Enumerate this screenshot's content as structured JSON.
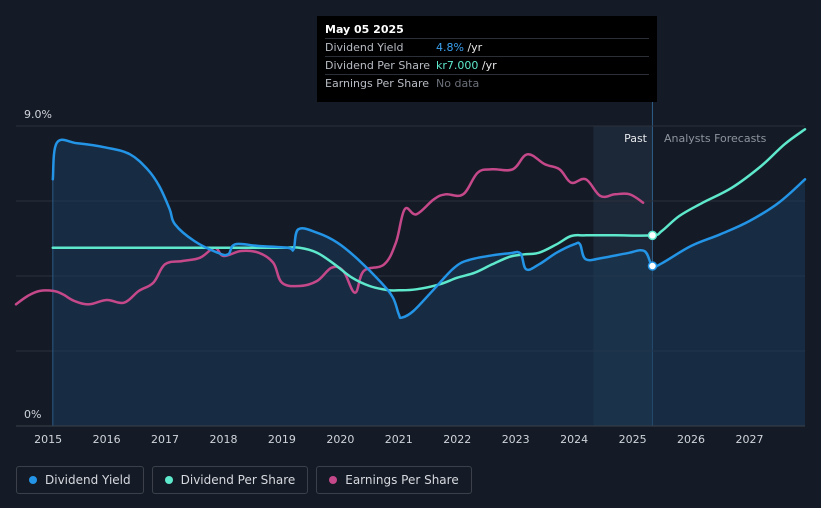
{
  "tooltip": {
    "date": "May 05 2025",
    "rows": [
      {
        "label": "Dividend Yield",
        "value": "4.8%",
        "unit": " /yr"
      },
      {
        "label": "Dividend Per Share",
        "value": "kr7.000",
        "unit": " /yr"
      },
      {
        "label": "Earnings Per Share",
        "value": "No data",
        "unit": ""
      }
    ]
  },
  "legend": {
    "items": [
      {
        "label": "Dividend Yield",
        "color": "#2394e6"
      },
      {
        "label": "Dividend Per Share",
        "color": "#5ee8cc"
      },
      {
        "label": "Earnings Per Share",
        "color": "#c5488a"
      }
    ]
  },
  "chart_data": {
    "type": "line",
    "y_tick_labels": [
      "9.0%",
      "0%"
    ],
    "ylim": [
      0,
      9.0
    ],
    "xlim": [
      2014.45,
      2027.95
    ],
    "x_ticks": [
      2015,
      2016,
      2017,
      2018,
      2019,
      2020,
      2021,
      2022,
      2023,
      2024,
      2025,
      2026,
      2027
    ],
    "x_tick_labels": [
      "2015",
      "2016",
      "2017",
      "2018",
      "2019",
      "2020",
      "2021",
      "2022",
      "2023",
      "2024",
      "2025",
      "2026",
      "2027"
    ],
    "region_labels": {
      "past": "Past",
      "forecast": "Analysts Forecasts"
    },
    "past_region": [
      2024.33,
      2025.34
    ],
    "grid": true,
    "series": [
      {
        "name": "Dividend Yield",
        "color": "#2394e6",
        "area": true,
        "points": [
          [
            2015.08,
            7.4
          ],
          [
            2015.15,
            8.5
          ],
          [
            2015.5,
            8.48
          ],
          [
            2016.0,
            8.35
          ],
          [
            2016.4,
            8.15
          ],
          [
            2016.7,
            7.7
          ],
          [
            2016.9,
            7.2
          ],
          [
            2017.08,
            6.5
          ],
          [
            2017.17,
            6.05
          ],
          [
            2017.5,
            5.55
          ],
          [
            2017.9,
            5.2
          ],
          [
            2018.08,
            5.15
          ],
          [
            2018.2,
            5.45
          ],
          [
            2018.6,
            5.4
          ],
          [
            2019.1,
            5.35
          ],
          [
            2019.2,
            5.3
          ],
          [
            2019.28,
            5.9
          ],
          [
            2019.6,
            5.8
          ],
          [
            2019.95,
            5.5
          ],
          [
            2020.3,
            5.0
          ],
          [
            2020.7,
            4.3
          ],
          [
            2020.9,
            3.85
          ],
          [
            2021.0,
            3.35
          ],
          [
            2021.05,
            3.25
          ],
          [
            2021.25,
            3.45
          ],
          [
            2021.6,
            4.1
          ],
          [
            2021.95,
            4.75
          ],
          [
            2022.2,
            4.98
          ],
          [
            2022.6,
            5.12
          ],
          [
            2022.9,
            5.18
          ],
          [
            2023.08,
            5.18
          ],
          [
            2023.18,
            4.7
          ],
          [
            2023.4,
            4.85
          ],
          [
            2023.7,
            5.2
          ],
          [
            2024.0,
            5.45
          ],
          [
            2024.1,
            5.45
          ],
          [
            2024.2,
            5.0
          ],
          [
            2024.5,
            5.05
          ],
          [
            2024.9,
            5.18
          ],
          [
            2025.2,
            5.25
          ],
          [
            2025.34,
            4.8
          ],
          [
            2025.5,
            4.88
          ],
          [
            2026.0,
            5.4
          ],
          [
            2026.5,
            5.75
          ],
          [
            2027.0,
            6.15
          ],
          [
            2027.5,
            6.7
          ],
          [
            2027.95,
            7.4
          ]
        ]
      },
      {
        "name": "Dividend Per Share",
        "color": "#5ee8cc",
        "area": false,
        "points": [
          [
            2015.08,
            5.35
          ],
          [
            2016.0,
            5.35
          ],
          [
            2017.0,
            5.35
          ],
          [
            2018.0,
            5.35
          ],
          [
            2019.0,
            5.35
          ],
          [
            2019.3,
            5.35
          ],
          [
            2019.6,
            5.2
          ],
          [
            2019.9,
            4.85
          ],
          [
            2020.2,
            4.45
          ],
          [
            2020.5,
            4.2
          ],
          [
            2020.8,
            4.08
          ],
          [
            2021.0,
            4.07
          ],
          [
            2021.3,
            4.1
          ],
          [
            2021.7,
            4.25
          ],
          [
            2022.0,
            4.45
          ],
          [
            2022.3,
            4.6
          ],
          [
            2022.6,
            4.85
          ],
          [
            2022.9,
            5.08
          ],
          [
            2023.15,
            5.15
          ],
          [
            2023.4,
            5.2
          ],
          [
            2023.7,
            5.45
          ],
          [
            2023.95,
            5.7
          ],
          [
            2024.2,
            5.72
          ],
          [
            2024.7,
            5.72
          ],
          [
            2025.34,
            5.72
          ],
          [
            2025.5,
            5.85
          ],
          [
            2025.8,
            6.3
          ],
          [
            2026.2,
            6.7
          ],
          [
            2026.7,
            7.15
          ],
          [
            2027.2,
            7.8
          ],
          [
            2027.6,
            8.45
          ],
          [
            2027.95,
            8.9
          ]
        ]
      },
      {
        "name": "Earnings Per Share",
        "color": "#c5488a",
        "area": false,
        "points": [
          [
            2014.45,
            3.65
          ],
          [
            2014.65,
            3.9
          ],
          [
            2014.85,
            4.05
          ],
          [
            2015.1,
            4.05
          ],
          [
            2015.25,
            3.95
          ],
          [
            2015.45,
            3.75
          ],
          [
            2015.7,
            3.65
          ],
          [
            2016.0,
            3.78
          ],
          [
            2016.3,
            3.7
          ],
          [
            2016.55,
            4.05
          ],
          [
            2016.8,
            4.3
          ],
          [
            2017.0,
            4.85
          ],
          [
            2017.3,
            4.95
          ],
          [
            2017.6,
            5.05
          ],
          [
            2017.85,
            5.35
          ],
          [
            2018.0,
            5.1
          ],
          [
            2018.3,
            5.25
          ],
          [
            2018.6,
            5.2
          ],
          [
            2018.85,
            4.9
          ],
          [
            2019.0,
            4.3
          ],
          [
            2019.3,
            4.2
          ],
          [
            2019.6,
            4.35
          ],
          [
            2019.85,
            4.75
          ],
          [
            2020.05,
            4.65
          ],
          [
            2020.25,
            4.0
          ],
          [
            2020.4,
            4.65
          ],
          [
            2020.75,
            4.85
          ],
          [
            2020.95,
            5.5
          ],
          [
            2021.1,
            6.5
          ],
          [
            2021.3,
            6.35
          ],
          [
            2021.6,
            6.8
          ],
          [
            2021.8,
            6.95
          ],
          [
            2022.1,
            6.95
          ],
          [
            2022.35,
            7.6
          ],
          [
            2022.6,
            7.7
          ],
          [
            2022.95,
            7.7
          ],
          [
            2023.2,
            8.15
          ],
          [
            2023.5,
            7.85
          ],
          [
            2023.75,
            7.7
          ],
          [
            2023.95,
            7.3
          ],
          [
            2024.2,
            7.4
          ],
          [
            2024.45,
            6.9
          ],
          [
            2024.7,
            6.95
          ],
          [
            2024.95,
            6.95
          ],
          [
            2025.18,
            6.7
          ]
        ]
      }
    ]
  }
}
